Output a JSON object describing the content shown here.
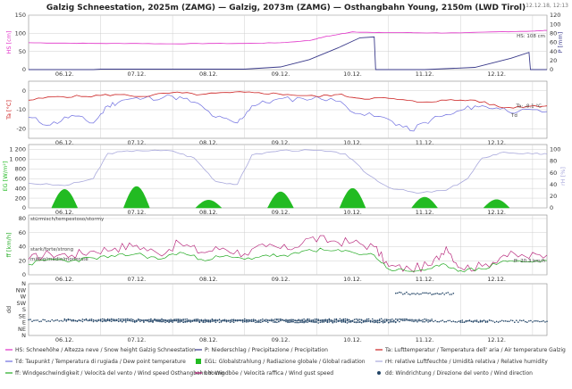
{
  "title": "Galzig Schneestation, 2025m (ZAMG) — Galzig, 2073m (ZAMG) — Osthangbahn Young, 2150m (LWD Tirol)",
  "timestamp": "12.12.18, 12:13",
  "colors": {
    "hs": "#e030c8",
    "precip": "#3a3a8a",
    "ta": "#cc2222",
    "td": "#6f6fe0",
    "rad": "#22bb22",
    "rh": "#a9a9dc",
    "wind": "#22aa22",
    "gust": "#b0106e",
    "dir": "#224466"
  },
  "chart_data": [
    {
      "type": "line",
      "x": [
        "06.12.",
        "07.12.",
        "08.12.",
        "09.12.",
        "10.12.",
        "11.12.",
        "12.12."
      ],
      "xlim": [
        0,
        7.2
      ],
      "ylabel_left": "HS [cm]",
      "ylabel_right": "P [mm]",
      "yticks_left": [
        0,
        50,
        100,
        150
      ],
      "ylim_left": [
        0,
        150
      ],
      "yticks_right": [
        0,
        20,
        40,
        60,
        80,
        100,
        120
      ],
      "ylim_right": [
        0,
        120
      ],
      "label_hs": "HS: 108 cm",
      "series": [
        {
          "key": "hs",
          "points": [
            [
              0,
              74
            ],
            [
              0.5,
              73
            ],
            [
              1,
              72
            ],
            [
              1.5,
              72
            ],
            [
              2,
              71
            ],
            [
              2.5,
              72
            ],
            [
              3,
              72
            ],
            [
              3.5,
              74
            ],
            [
              3.9,
              80
            ],
            [
              4.1,
              90
            ],
            [
              4.3,
              97
            ],
            [
              4.5,
              104
            ],
            [
              4.8,
              102
            ],
            [
              5.2,
              102
            ],
            [
              5.6,
              101
            ],
            [
              6,
              101
            ],
            [
              6.5,
              104
            ],
            [
              7,
              106
            ],
            [
              7.2,
              108
            ]
          ]
        },
        {
          "key": "precip",
          "points": [
            [
              0,
              0
            ],
            [
              0.9,
              0
            ],
            [
              1,
              1
            ],
            [
              2.5,
              1
            ],
            [
              3,
              1
            ],
            [
              3.5,
              6
            ],
            [
              3.9,
              22
            ],
            [
              4.3,
              48
            ],
            [
              4.6,
              70
            ],
            [
              4.8,
              72
            ],
            [
              4.82,
              0
            ],
            [
              5.5,
              0
            ],
            [
              6.2,
              5
            ],
            [
              6.7,
              25
            ],
            [
              6.95,
              38
            ],
            [
              6.97,
              0
            ],
            [
              7.2,
              0
            ]
          ]
        }
      ]
    },
    {
      "type": "line",
      "x": [
        "06.12.",
        "07.12.",
        "08.12.",
        "09.12.",
        "10.12.",
        "11.12.",
        "12.12."
      ],
      "xlim": [
        0,
        7.2
      ],
      "ylabel": "Ta [°C]",
      "yticks": [
        -20,
        -10,
        0
      ],
      "ylim": [
        -25,
        5
      ],
      "label_ta": "Ta: -8.1 °C",
      "label_td": "Td",
      "series": [
        {
          "key": "ta",
          "points": [
            [
              0,
              -5
            ],
            [
              0.4,
              -3
            ],
            [
              0.8,
              -3
            ],
            [
              1.2,
              -2
            ],
            [
              1.6,
              -3
            ],
            [
              2,
              -1
            ],
            [
              2.4,
              -2
            ],
            [
              2.8,
              -1
            ],
            [
              3.2,
              -1
            ],
            [
              3.6,
              -2
            ],
            [
              4,
              -3
            ],
            [
              4.3,
              -2
            ],
            [
              4.6,
              -4
            ],
            [
              5,
              -4
            ],
            [
              5.4,
              -6
            ],
            [
              5.8,
              -5
            ],
            [
              6.2,
              -5
            ],
            [
              6.6,
              -9
            ],
            [
              7,
              -8
            ],
            [
              7.2,
              -8
            ]
          ]
        },
        {
          "key": "td",
          "points": [
            [
              0,
              -14
            ],
            [
              0.3,
              -18
            ],
            [
              0.6,
              -13
            ],
            [
              0.9,
              -17
            ],
            [
              1.1,
              -8
            ],
            [
              1.3,
              -5
            ],
            [
              1.6,
              -4
            ],
            [
              2,
              -3
            ],
            [
              2.3,
              -6
            ],
            [
              2.6,
              -14
            ],
            [
              2.9,
              -17
            ],
            [
              3.1,
              -8
            ],
            [
              3.4,
              -5
            ],
            [
              3.8,
              -4
            ],
            [
              4.2,
              -4
            ],
            [
              4.6,
              -12
            ],
            [
              5,
              -15
            ],
            [
              5.3,
              -21
            ],
            [
              5.6,
              -15
            ],
            [
              5.9,
              -12
            ],
            [
              6.2,
              -8
            ],
            [
              6.5,
              -9
            ],
            [
              6.8,
              -11
            ],
            [
              7.2,
              -11
            ]
          ]
        }
      ]
    },
    {
      "type": "area",
      "x": [
        "06.12.",
        "07.12.",
        "08.12.",
        "09.12.",
        "10.12.",
        "11.12.",
        "12.12."
      ],
      "xlim": [
        0,
        7.2
      ],
      "ylabel_left": "EG [W/m²]",
      "ylabel_right": "rH [%]",
      "yticks_left": [
        0,
        200,
        400,
        600,
        800,
        1000,
        1200
      ],
      "ytick_labels_left": [
        "0",
        "200",
        "400",
        "600",
        "800",
        "1 000",
        "1 200"
      ],
      "ylim_left": [
        0,
        1300
      ],
      "yticks_right": [
        0,
        20,
        40,
        60,
        80,
        100
      ],
      "ylim_right": [
        0,
        108
      ],
      "radiation_peaks": [
        {
          "day": 0,
          "peak": 380
        },
        {
          "day": 1,
          "peak": 440
        },
        {
          "day": 2,
          "peak": 160
        },
        {
          "day": 3,
          "peak": 330
        },
        {
          "day": 4,
          "peak": 400
        },
        {
          "day": 5,
          "peak": 220
        },
        {
          "day": 6,
          "peak": 170
        }
      ],
      "series": [
        {
          "key": "rh",
          "points": [
            [
              0,
              42
            ],
            [
              0.5,
              38
            ],
            [
              0.9,
              50
            ],
            [
              1.1,
              93
            ],
            [
              1.5,
              98
            ],
            [
              2,
              97
            ],
            [
              2.3,
              85
            ],
            [
              2.6,
              45
            ],
            [
              2.9,
              40
            ],
            [
              3.1,
              90
            ],
            [
              3.5,
              98
            ],
            [
              4,
              98
            ],
            [
              4.4,
              92
            ],
            [
              4.7,
              58
            ],
            [
              5,
              35
            ],
            [
              5.4,
              25
            ],
            [
              5.8,
              30
            ],
            [
              6.1,
              50
            ],
            [
              6.3,
              85
            ],
            [
              6.6,
              95
            ],
            [
              7,
              92
            ],
            [
              7.2,
              92
            ]
          ]
        }
      ]
    },
    {
      "type": "line",
      "x": [
        "06.12.",
        "07.12.",
        "08.12.",
        "09.12.",
        "10.12.",
        "11.12.",
        "12.12."
      ],
      "xlim": [
        0,
        7.2
      ],
      "ylabel": "ff [km/h]",
      "yticks": [
        0,
        20,
        40,
        60,
        80
      ],
      "ylim": [
        0,
        85
      ],
      "bands": [
        "stürmisch/tempestoso/stormy",
        "stark/forte/strong",
        "mäßig/medio/moderate"
      ],
      "label_ff": "ff: 20.3 km/h",
      "series": [
        {
          "key": "gust",
          "points": [
            [
              0,
              22
            ],
            [
              0.3,
              30
            ],
            [
              0.6,
              28
            ],
            [
              0.9,
              34
            ],
            [
              1.2,
              38
            ],
            [
              1.5,
              42
            ],
            [
              1.8,
              30
            ],
            [
              2.1,
              45
            ],
            [
              2.4,
              32
            ],
            [
              2.7,
              38
            ],
            [
              3,
              30
            ],
            [
              3.3,
              40
            ],
            [
              3.6,
              36
            ],
            [
              3.9,
              52
            ],
            [
              4.2,
              48
            ],
            [
              4.5,
              46
            ],
            [
              4.8,
              40
            ],
            [
              5,
              12
            ],
            [
              5.3,
              8
            ],
            [
              5.6,
              14
            ],
            [
              5.8,
              40
            ],
            [
              6,
              10
            ],
            [
              6.3,
              12
            ],
            [
              6.6,
              28
            ],
            [
              6.9,
              26
            ],
            [
              7.2,
              28
            ]
          ]
        },
        {
          "key": "wind",
          "points": [
            [
              0,
              15
            ],
            [
              0.3,
              22
            ],
            [
              0.6,
              20
            ],
            [
              0.9,
              24
            ],
            [
              1.2,
              26
            ],
            [
              1.5,
              30
            ],
            [
              1.8,
              22
            ],
            [
              2.1,
              32
            ],
            [
              2.4,
              22
            ],
            [
              2.7,
              26
            ],
            [
              3,
              22
            ],
            [
              3.3,
              28
            ],
            [
              3.6,
              26
            ],
            [
              3.9,
              36
            ],
            [
              4.2,
              34
            ],
            [
              4.5,
              32
            ],
            [
              4.8,
              28
            ],
            [
              5,
              8
            ],
            [
              5.3,
              5
            ],
            [
              5.6,
              9
            ],
            [
              5.8,
              14
            ],
            [
              6,
              6
            ],
            [
              6.3,
              8
            ],
            [
              6.6,
              20
            ],
            [
              6.9,
              18
            ],
            [
              7.2,
              20
            ]
          ]
        }
      ]
    },
    {
      "type": "scatter",
      "x": [
        "06.12.",
        "07.12.",
        "08.12.",
        "09.12.",
        "10.12.",
        "11.12.",
        "12.12."
      ],
      "xlim": [
        0,
        7.2
      ],
      "ylabel": "dd",
      "ytick_labels": [
        "N",
        "NW",
        "W",
        "SW",
        "S",
        "SE",
        "E",
        "NE",
        "N"
      ],
      "ylim": [
        0,
        8
      ],
      "series": [
        {
          "key": "dir",
          "segments": [
            [
              0,
              4.5,
              5.7
            ],
            [
              0.5,
              5.6,
              5.6
            ],
            [
              1,
              6.4,
              5.8
            ],
            [
              1.6,
              2.6,
              5.8
            ],
            [
              3.6,
              4.6,
              5.9
            ],
            [
              4.6,
              5.1,
              5.9
            ],
            [
              5.1,
              5.9,
              1.5
            ],
            [
              6,
              7.2,
              5.8
            ]
          ]
        }
      ]
    }
  ],
  "legend": {
    "row1": [
      {
        "key": "hs",
        "style": "line",
        "label": "HS: Schneehöhe / Altezza neve / Snow height  Galzig Schneestation"
      },
      {
        "key": "precip",
        "style": "line",
        "label": "P: Niederschlag / Precipitazione / Precipitation"
      },
      {
        "key": "ta",
        "style": "line",
        "label": "Ta: Lufttemperatur / Temperatura dell' aria / Air temperature  Galzig"
      }
    ],
    "row2": [
      {
        "key": "td",
        "style": "line",
        "label": "Td: Taupunkt / Temperatura di rugiada / Dew point temperature"
      },
      {
        "key": "rad",
        "style": "square",
        "label": "EGL: Globalstrahlung / Radiazione globale / Global radiation"
      },
      {
        "key": "rh",
        "style": "line",
        "label": "rH: relative Luftfeuchte / Umidità relativa / Relative humidity"
      }
    ],
    "row3": [
      {
        "key": "wind",
        "style": "line",
        "label": "ff: Windgeschwindigkeit / Velocità del vento / Wind speed  Osthangbahn Young"
      },
      {
        "key": "gust",
        "style": "line",
        "label": "bb: Windböe / Velocità raffica / Wind gust speed"
      },
      {
        "key": "dir",
        "style": "dot",
        "label": "dd: Windrichtung / Direzione del vento / Wind direction"
      }
    ]
  }
}
